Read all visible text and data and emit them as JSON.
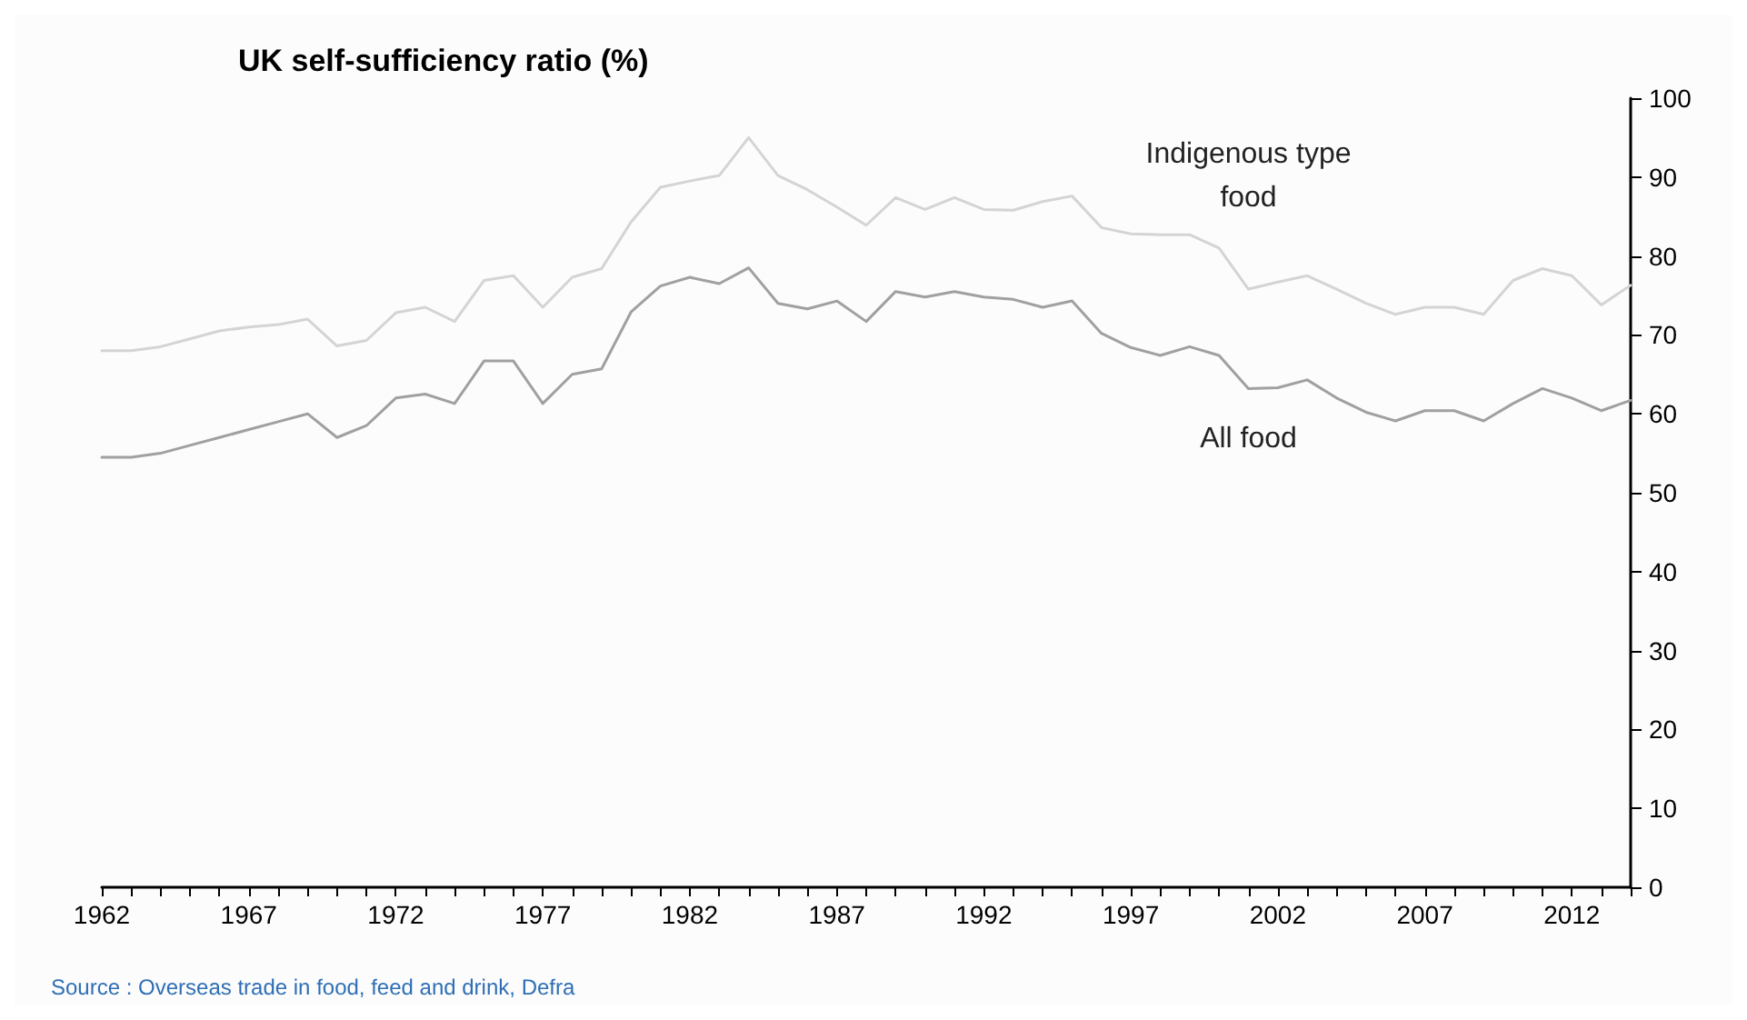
{
  "chart_data": {
    "type": "line",
    "title": "UK self-sufficiency ratio (%)",
    "x": [
      1962,
      1963,
      1964,
      1965,
      1966,
      1967,
      1968,
      1969,
      1970,
      1971,
      1972,
      1973,
      1974,
      1975,
      1976,
      1977,
      1978,
      1979,
      1980,
      1981,
      1982,
      1983,
      1984,
      1985,
      1986,
      1987,
      1988,
      1989,
      1990,
      1991,
      1992,
      1993,
      1994,
      1995,
      1996,
      1997,
      1998,
      1999,
      2000,
      2001,
      2002,
      2003,
      2004,
      2005,
      2006,
      2007,
      2008,
      2009,
      2010,
      2011,
      2012,
      2013,
      2014
    ],
    "series": [
      {
        "name": "Indigenous type\nfood",
        "color": "#d4d4d4",
        "values": [
          68,
          68,
          68.5,
          69.5,
          70.5,
          71,
          71.3,
          72,
          68.6,
          69.3,
          72.8,
          73.5,
          71.7,
          76.9,
          77.5,
          73.5,
          77.3,
          78.4,
          84.3,
          88.7,
          89.5,
          90.2,
          95,
          90.2,
          88.4,
          86.2,
          83.9,
          87.4,
          85.9,
          87.4,
          85.9,
          85.8,
          86.9,
          87.6,
          83.6,
          82.8,
          82.7,
          82.7,
          81,
          75.8,
          76.7,
          77.5,
          75.8,
          74,
          72.6,
          73.5,
          73.5,
          72.6,
          76.9,
          78.4,
          77.5,
          73.8,
          76.3
        ]
      },
      {
        "name": "All food",
        "color": "#a0a0a0",
        "values": [
          54.5,
          54.5,
          55,
          56,
          57,
          58,
          59,
          60,
          57,
          58.5,
          62,
          62.5,
          61.3,
          66.7,
          66.7,
          61.3,
          65,
          65.7,
          72.9,
          76.2,
          77.3,
          76.5,
          78.5,
          74,
          73.3,
          74.3,
          71.7,
          75.5,
          74.8,
          75.5,
          74.8,
          74.5,
          73.5,
          74.3,
          70.2,
          68.4,
          67.4,
          68.5,
          67.4,
          63.2,
          63.3,
          64.3,
          62,
          60.2,
          59.1,
          60.4,
          60.4,
          59.1,
          61.3,
          63.2,
          62,
          60.4,
          61.7
        ]
      }
    ],
    "annotations": [
      "Source : Overseas trade in food, feed and drink, Defra"
    ],
    "xlim": [
      1962,
      2014
    ],
    "xticks": [
      1962,
      {
        "value": 1963,
        "label": null
      },
      {
        "value": 1964,
        "label": null
      },
      {
        "value": 1965,
        "label": null
      },
      {
        "value": 1966,
        "label": null
      },
      1967,
      {
        "value": 1968,
        "label": null
      },
      {
        "value": 1969,
        "label": null
      },
      {
        "value": 1970,
        "label": null
      },
      {
        "value": 1971,
        "label": null
      },
      1972,
      {
        "value": 1973,
        "label": null
      },
      {
        "value": 1974,
        "label": null
      },
      {
        "value": 1975,
        "label": null
      },
      {
        "value": 1976,
        "label": null
      },
      1977,
      {
        "value": 1978,
        "label": null
      },
      {
        "value": 1979,
        "label": null
      },
      {
        "value": 1980,
        "label": null
      },
      {
        "value": 1981,
        "label": null
      },
      1982,
      {
        "value": 1983,
        "label": null
      },
      {
        "value": 1984,
        "label": null
      },
      {
        "value": 1985,
        "label": null
      },
      {
        "value": 1986,
        "label": null
      },
      1987,
      {
        "value": 1988,
        "label": null
      },
      {
        "value": 1989,
        "label": null
      },
      {
        "value": 1990,
        "label": null
      },
      {
        "value": 1991,
        "label": null
      },
      1992,
      {
        "value": 1993,
        "label": null
      },
      {
        "value": 1994,
        "label": null
      },
      {
        "value": 1995,
        "label": null
      },
      {
        "value": 1996,
        "label": null
      },
      1997,
      {
        "value": 1998,
        "label": null
      },
      {
        "value": 1999,
        "label": null
      },
      {
        "value": 2000,
        "label": null
      },
      {
        "value": 2001,
        "label": null
      },
      2002,
      {
        "value": 2003,
        "label": null
      },
      {
        "value": 2004,
        "label": null
      },
      {
        "value": 2005,
        "label": null
      },
      {
        "value": 2006,
        "label": null
      },
      2007,
      {
        "value": 2008,
        "label": null
      },
      {
        "value": 2009,
        "label": null
      },
      {
        "value": 2010,
        "label": null
      },
      {
        "value": 2011,
        "label": null
      },
      2012,
      {
        "value": 2013,
        "label": null
      },
      {
        "value": 2014,
        "label": null
      }
    ],
    "ylim": [
      0,
      100
    ],
    "yticks": [
      0,
      10,
      20,
      30,
      40,
      50,
      60,
      70,
      80,
      90,
      100
    ],
    "grid": false,
    "marker": "none",
    "line_style": "solid"
  }
}
